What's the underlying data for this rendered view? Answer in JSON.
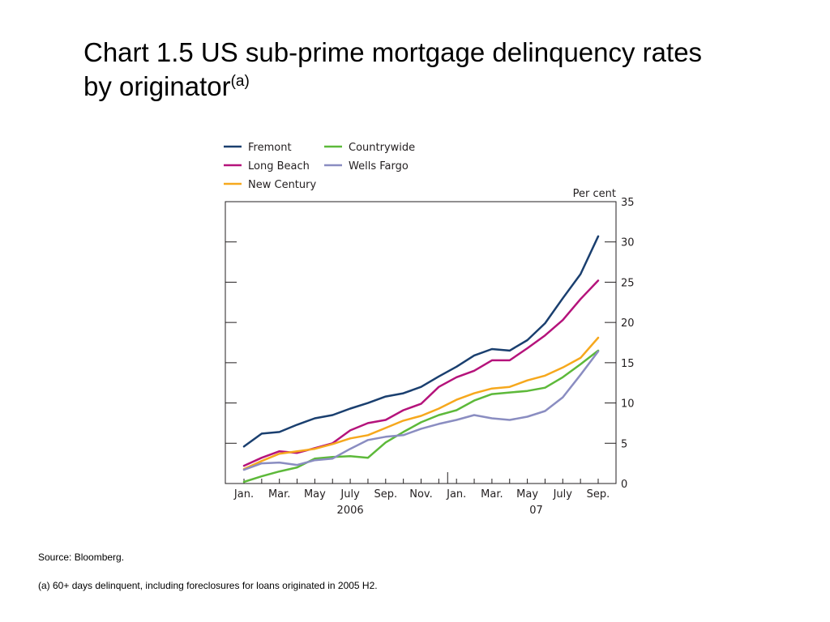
{
  "slide": {
    "title": "Chart 1.5  US sub-prime mortgage delinquency rates by originator",
    "title_line1": "Chart 1.5  US sub-prime mortgage delinquency rates",
    "title_line2": "by originator",
    "title_superscript": "(a)",
    "source": "Source:  Bloomberg.",
    "footnote": "(a)  60+ days delinquent, including foreclosures for loans originated in 2005 H2."
  },
  "chart_data": {
    "type": "line",
    "unit_label": "Per cent",
    "ylim": [
      0,
      35
    ],
    "y_ticks": [
      0,
      5,
      10,
      15,
      20,
      25,
      30,
      35
    ],
    "y_axis_side": "right",
    "legend_placement": "top-left",
    "grid": false,
    "x": [
      "Jan 2006",
      "Feb 2006",
      "Mar 2006",
      "Apr 2006",
      "May 2006",
      "Jun 2006",
      "Jul 2006",
      "Aug 2006",
      "Sep 2006",
      "Oct 2006",
      "Nov 2006",
      "Dec 2006",
      "Jan 2007",
      "Feb 2007",
      "Mar 2007",
      "Apr 2007",
      "May 2007",
      "Jun 2007",
      "Jul 2007",
      "Aug 2007",
      "Sep 2007"
    ],
    "x_tick_labels": [
      {
        "label": "Jan.",
        "index": 0
      },
      {
        "label": "Mar.",
        "index": 2
      },
      {
        "label": "May",
        "index": 4
      },
      {
        "label": "July",
        "index": 6
      },
      {
        "label": "Sep.",
        "index": 8
      },
      {
        "label": "Nov.",
        "index": 10
      },
      {
        "label": "Jan.",
        "index": 12
      },
      {
        "label": "Mar.",
        "index": 14
      },
      {
        "label": "May",
        "index": 16
      },
      {
        "label": "July",
        "index": 18
      },
      {
        "label": "Sep.",
        "index": 20
      }
    ],
    "year_labels": [
      {
        "label": "2006",
        "index": 6
      },
      {
        "label": "07",
        "index": 16.5
      }
    ],
    "series": [
      {
        "name": "Fremont",
        "color": "#1a3f6f",
        "values": [
          4.6,
          6.2,
          6.4,
          7.3,
          8.1,
          8.5,
          9.3,
          10.0,
          10.8,
          11.2,
          12.0,
          13.3,
          14.5,
          15.9,
          16.7,
          16.5,
          17.8,
          19.9,
          23.0,
          26.0,
          30.7
        ]
      },
      {
        "name": "Long Beach",
        "color": "#b5137b",
        "values": [
          2.2,
          3.2,
          4.0,
          3.8,
          4.4,
          5.0,
          6.6,
          7.5,
          7.9,
          9.1,
          9.9,
          12.0,
          13.2,
          14.0,
          15.3,
          15.3,
          16.8,
          18.4,
          20.3,
          22.9,
          25.2
        ]
      },
      {
        "name": "New Century",
        "color": "#f6a81d",
        "values": [
          1.8,
          2.8,
          3.7,
          4.0,
          4.3,
          4.9,
          5.6,
          6.0,
          6.9,
          7.8,
          8.4,
          9.3,
          10.4,
          11.2,
          11.8,
          12.0,
          12.8,
          13.4,
          14.4,
          15.6,
          18.1
        ]
      },
      {
        "name": "Countrywide",
        "color": "#5db93a",
        "values": [
          0.2,
          0.9,
          1.5,
          2.0,
          3.1,
          3.3,
          3.4,
          3.2,
          5.1,
          6.4,
          7.6,
          8.5,
          9.1,
          10.3,
          11.1,
          11.3,
          11.5,
          11.9,
          13.2,
          14.8,
          16.5
        ]
      },
      {
        "name": "Wells Fargo",
        "color": "#8a8dc1",
        "values": [
          1.7,
          2.5,
          2.6,
          2.3,
          2.9,
          3.1,
          4.3,
          5.4,
          5.8,
          6.0,
          6.8,
          7.4,
          7.9,
          8.5,
          8.1,
          7.9,
          8.3,
          9.0,
          10.7,
          13.5,
          16.4
        ]
      }
    ]
  }
}
